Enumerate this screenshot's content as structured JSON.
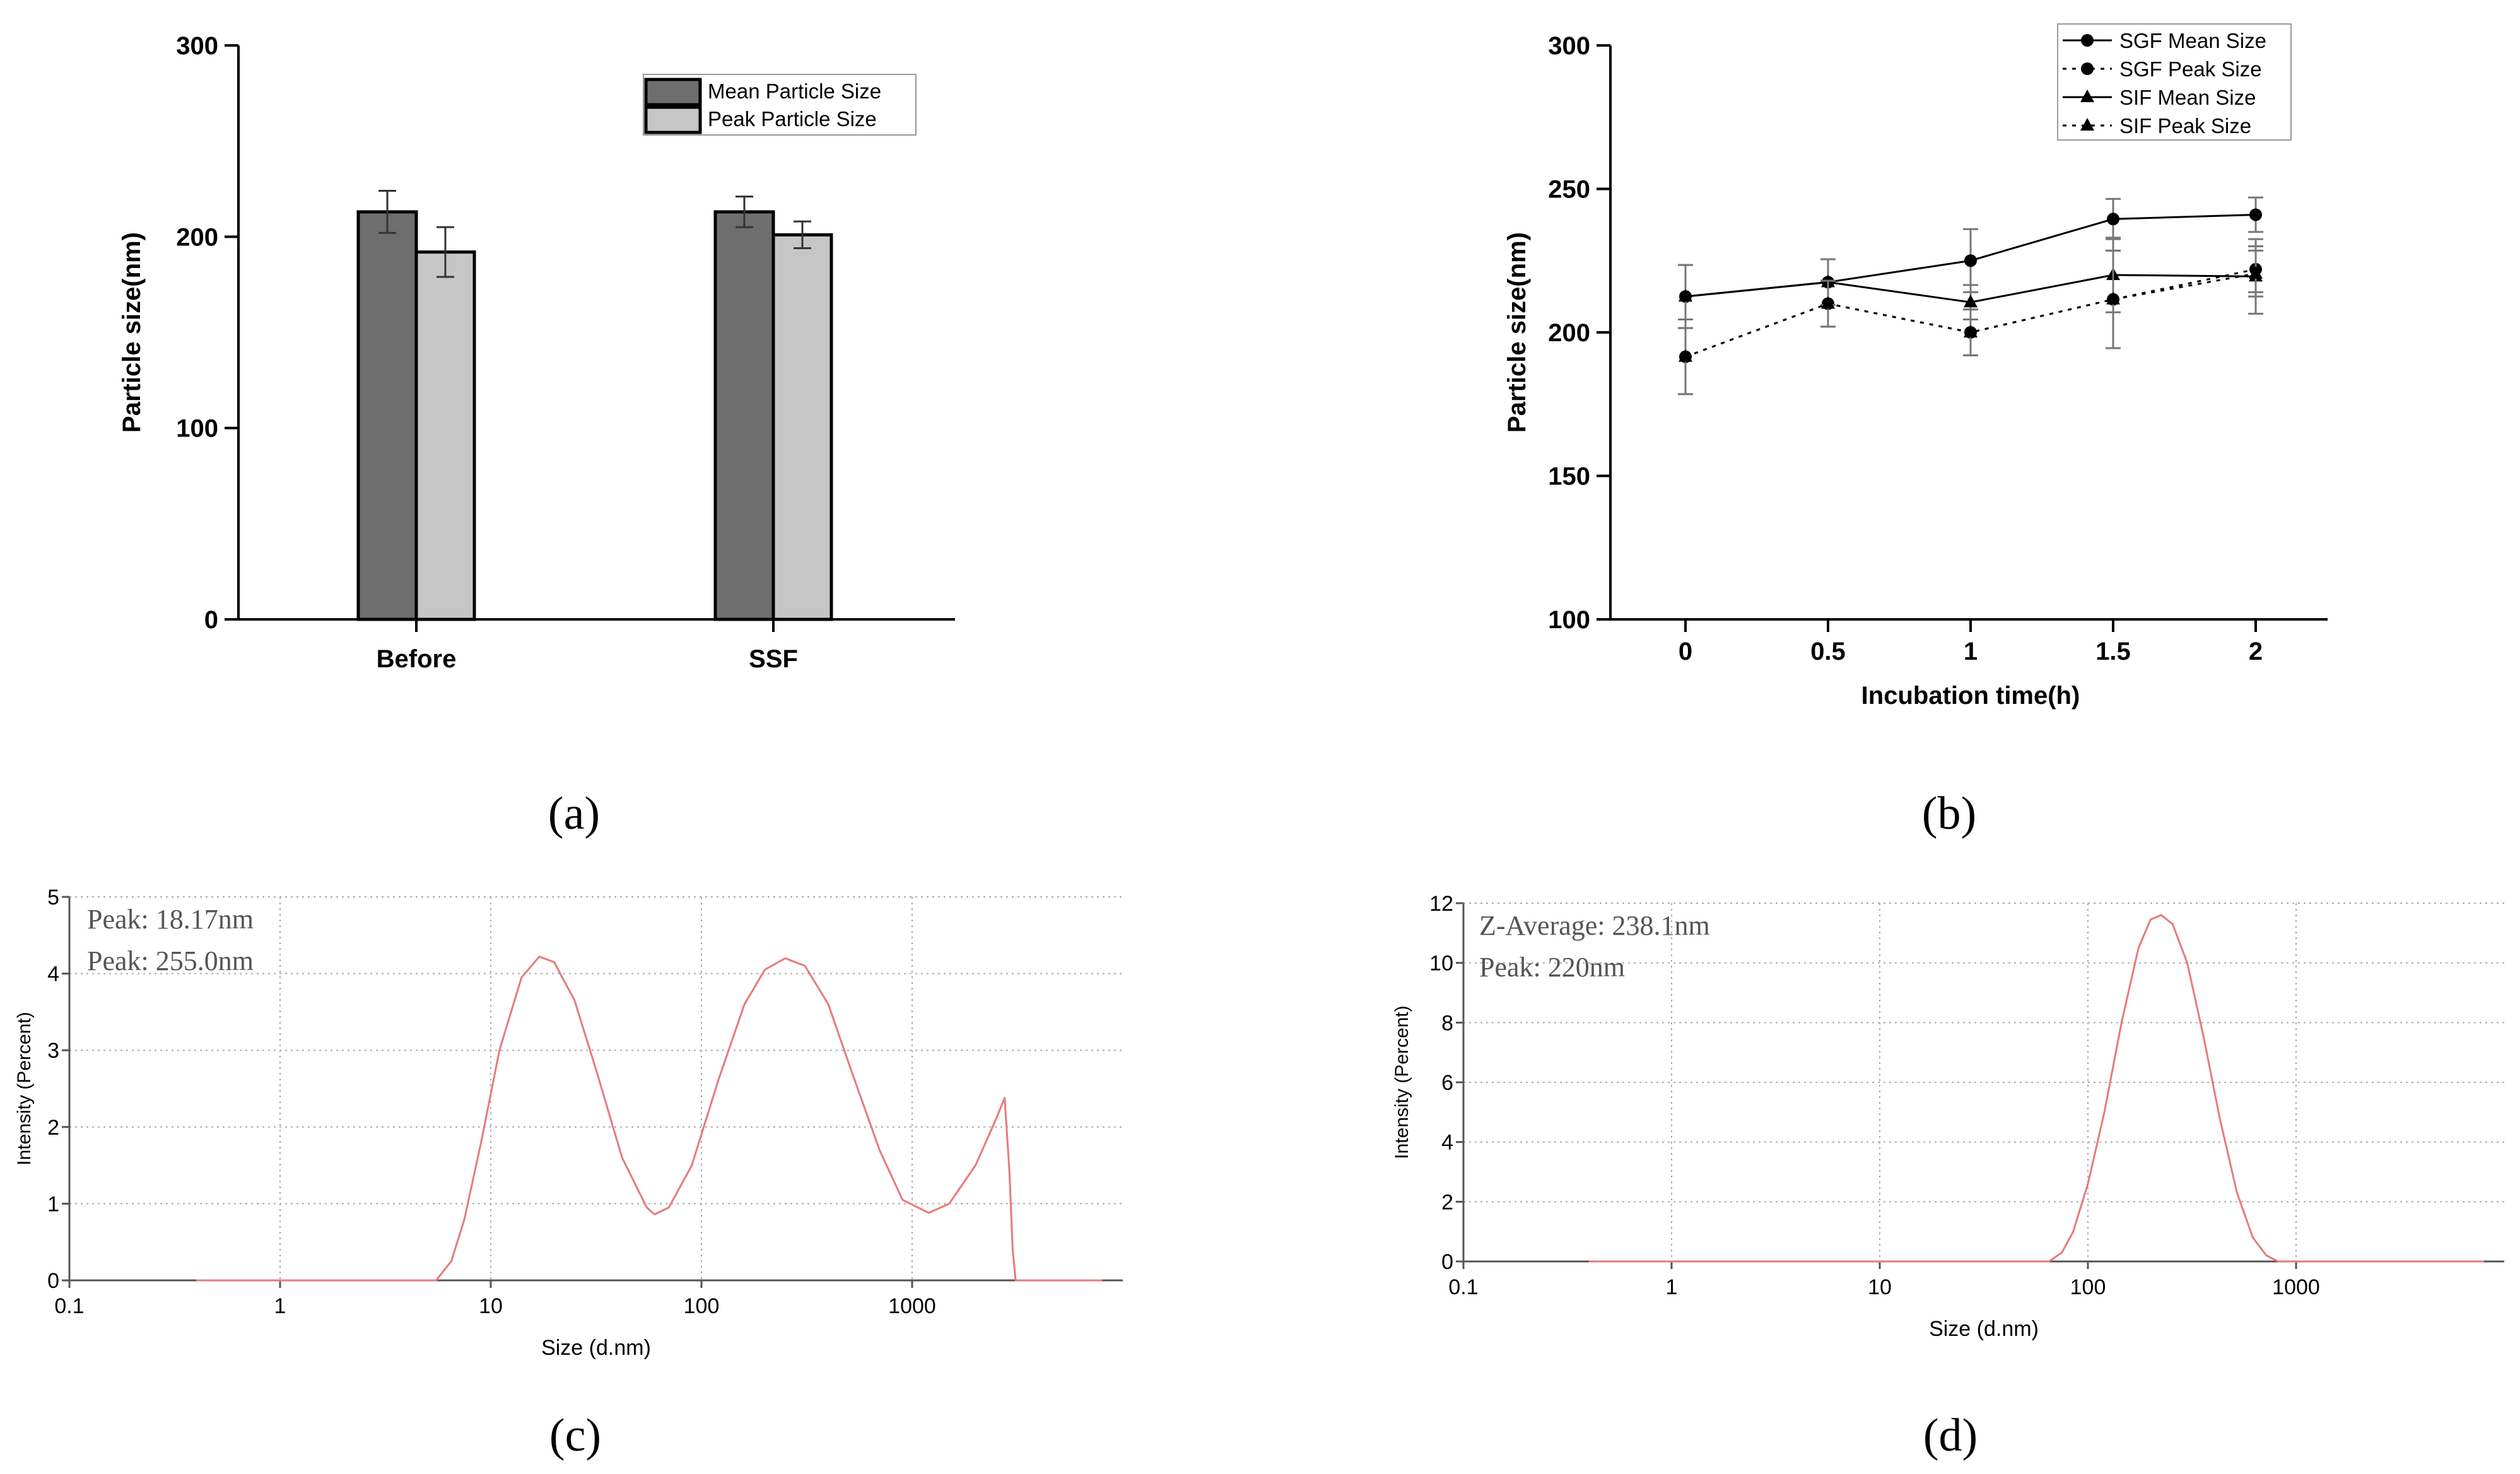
{
  "chart_data": [
    {
      "panel": "(a)",
      "type": "bar",
      "categories": [
        "Before",
        "SSF"
      ],
      "series": [
        {
          "name": "Mean Particle Size",
          "values": [
            213,
            213
          ],
          "errors": [
            11,
            8
          ],
          "color": "#6e6e6e"
        },
        {
          "name": "Peak Particle Size",
          "values": [
            192,
            201
          ],
          "errors": [
            13,
            7
          ],
          "color": "#c6c6c6"
        }
      ],
      "ylabel": "Particle size(nm)",
      "xlabel": "",
      "ylim": [
        0,
        300
      ],
      "yticks": [
        "0",
        "100",
        "200",
        "300"
      ],
      "legend": "top-right"
    },
    {
      "panel": "(b)",
      "type": "line",
      "x": [
        0,
        0.5,
        1,
        1.5,
        2
      ],
      "xticks": [
        "0",
        "0.5",
        "1",
        "1.5",
        "2"
      ],
      "series": [
        {
          "name": "SGF Mean Size",
          "values": [
            212.5,
            217.5,
            225,
            239.5,
            241
          ],
          "errors": [
            11,
            8,
            11,
            7,
            6
          ],
          "line": "solid",
          "marker": "circle"
        },
        {
          "name": "SGF Peak Size",
          "values": [
            191.5,
            210,
            200,
            211.5,
            222
          ],
          "errors": [
            13,
            8,
            8,
            17,
            8
          ],
          "line": "dotted",
          "marker": "circle"
        },
        {
          "name": "SIF Mean Size",
          "values": [
            212.5,
            217.5,
            210.5,
            220,
            219.5
          ],
          "errors": [
            11,
            8,
            6,
            13,
            13
          ],
          "line": "solid",
          "marker": "triangle"
        },
        {
          "name": "SIF Peak Size",
          "values": [
            191.5,
            210,
            200,
            211.5,
            220.5
          ],
          "errors": [
            13,
            8,
            8,
            17,
            8
          ],
          "line": "dotted",
          "marker": "triangle"
        }
      ],
      "xlabel": "Incubation time(h)",
      "ylabel": "Particle size(nm)",
      "ylim": [
        100,
        300
      ],
      "yticks": [
        "100",
        "150",
        "200",
        "250",
        "300"
      ],
      "legend": "top-right"
    },
    {
      "panel": "(c)",
      "type": "line",
      "xscale": "log",
      "xlim": [
        0.1,
        10000
      ],
      "xticks": [
        "0.1",
        "1",
        "10",
        "100",
        "1000"
      ],
      "xtick_values": [
        0.1,
        1,
        10,
        100,
        1000
      ],
      "ylim": [
        0,
        5
      ],
      "yticks": [
        "0",
        "1",
        "2",
        "3",
        "4",
        "5"
      ],
      "xlabel": "Size (d.nm)",
      "ylabel": "Intensity (Percent)",
      "annotations": [
        "Peak: 18.17nm",
        "Peak: 255.0nm"
      ],
      "color": "#e87a7a",
      "x": [
        0.4,
        5.5,
        6.5,
        7.5,
        9,
        11,
        14,
        17,
        20,
        25,
        32,
        42,
        55,
        60,
        70,
        90,
        120,
        160,
        200,
        250,
        310,
        400,
        520,
        700,
        900,
        1200,
        1500,
        2000,
        2500,
        2750,
        2900,
        3000,
        3100,
        8000
      ],
      "y": [
        0,
        0,
        0.25,
        0.8,
        1.8,
        3.0,
        3.95,
        4.22,
        4.15,
        3.65,
        2.7,
        1.6,
        0.95,
        0.86,
        0.95,
        1.5,
        2.6,
        3.6,
        4.05,
        4.2,
        4.1,
        3.6,
        2.7,
        1.7,
        1.05,
        0.88,
        1.0,
        1.5,
        2.1,
        2.38,
        1.4,
        0.4,
        0,
        0
      ]
    },
    {
      "panel": "(d)",
      "type": "line",
      "xscale": "log",
      "xlim": [
        0.1,
        10000
      ],
      "xticks": [
        "0.1",
        "1",
        "10",
        "100",
        "1000"
      ],
      "xtick_values": [
        0.1,
        1,
        10,
        100,
        1000
      ],
      "ylim": [
        0,
        12
      ],
      "yticks": [
        "0",
        "2",
        "4",
        "6",
        "8",
        "10",
        "12"
      ],
      "xlabel": "Size (d.nm)",
      "ylabel": "Intensity (Percent)",
      "annotations": [
        "Z-Average: 238.1nm",
        "Peak: 220nm"
      ],
      "color": "#e87a7a",
      "x": [
        0.4,
        65,
        75,
        85,
        100,
        120,
        145,
        175,
        200,
        225,
        255,
        300,
        360,
        430,
        520,
        620,
        720,
        820,
        8000
      ],
      "y": [
        0,
        0,
        0.3,
        1.0,
        2.6,
        5.0,
        8.0,
        10.5,
        11.45,
        11.6,
        11.3,
        10.0,
        7.5,
        4.8,
        2.3,
        0.8,
        0.2,
        0,
        0
      ]
    }
  ],
  "panel_labels": [
    "(a)",
    "(b)",
    "(c)",
    "(d)"
  ]
}
